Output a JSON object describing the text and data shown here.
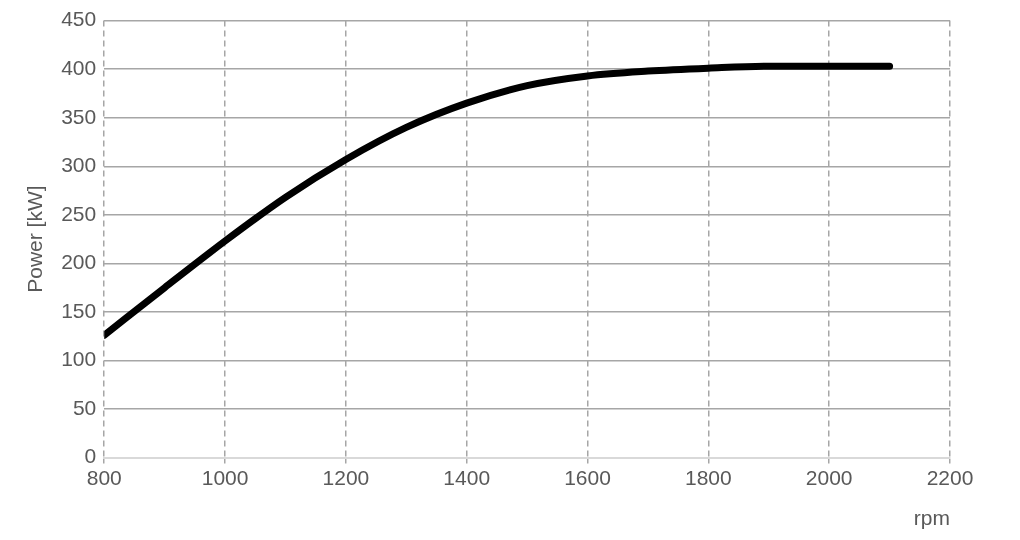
{
  "chart_data": {
    "type": "line",
    "xlabel": "rpm",
    "ylabel": "Power [kW]",
    "x": [
      800,
      900,
      1000,
      1100,
      1200,
      1300,
      1400,
      1500,
      1600,
      1700,
      1800,
      1900,
      2000,
      2100
    ],
    "series": [
      {
        "color": "#000000",
        "values": [
          126,
          175,
          223,
          268,
          307,
          340,
          365,
          383,
          393,
          398,
          401,
          403,
          403,
          403
        ]
      }
    ],
    "xlim": [
      800,
      2200
    ],
    "xticks": [
      800,
      1000,
      1200,
      1400,
      1600,
      1800,
      2000,
      2200
    ],
    "ylim": [
      0,
      450
    ],
    "yticks": [
      0,
      50,
      100,
      150,
      200,
      250,
      300,
      350,
      400,
      450
    ],
    "grid": true,
    "marker": "none",
    "line_style": "solid"
  }
}
